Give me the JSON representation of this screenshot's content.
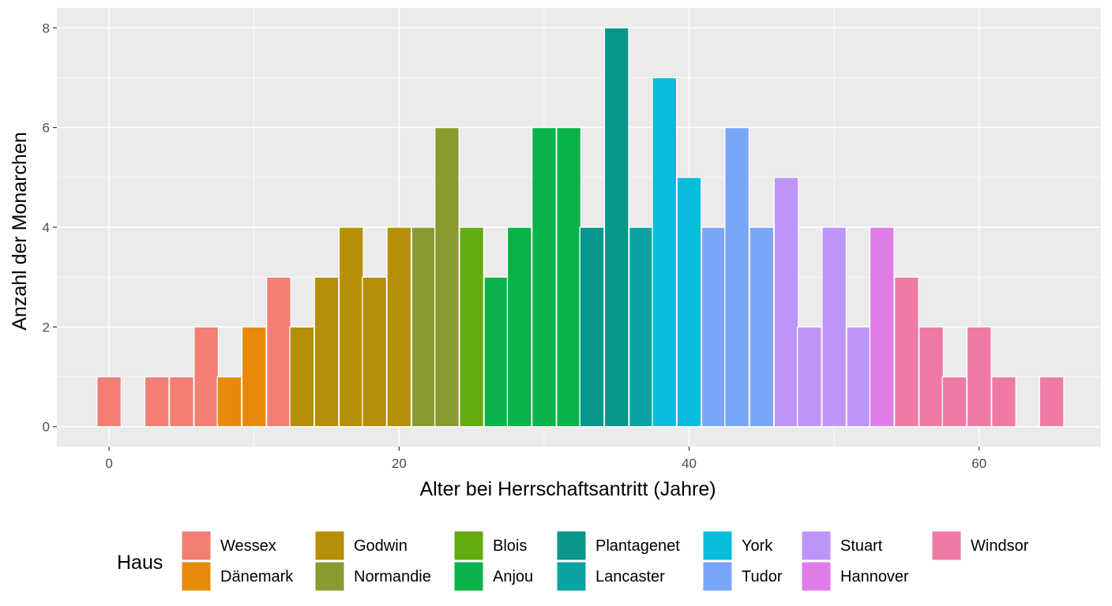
{
  "chart_data": {
    "type": "bar",
    "title": "",
    "xlabel": "Alter bei Herrschaftsantritt (Jahre)",
    "ylabel": "Anzahl der Monarchen",
    "xlim": [
      -3.6,
      68.4
    ],
    "ylim": [
      -0.4,
      8.4
    ],
    "x_ticks": [
      0,
      20,
      40,
      60
    ],
    "y_ticks": [
      0,
      2,
      4,
      6,
      8
    ],
    "bin_width": 1.667,
    "grid": true,
    "legend": {
      "title": "Haus",
      "position": "bottom",
      "entries": [
        {
          "name": "Wessex",
          "color": "#F27F71"
        },
        {
          "name": "Dänemark",
          "color": "#E7890A"
        },
        {
          "name": "Godwin",
          "color": "#B58F05"
        },
        {
          "name": "Normandie",
          "color": "#8B9A30"
        },
        {
          "name": "Blois",
          "color": "#63AB11"
        },
        {
          "name": "Anjou",
          "color": "#09B34A"
        },
        {
          "name": "Plantagenet",
          "color": "#07958E"
        },
        {
          "name": "Lancaster",
          "color": "#0BA3A1"
        },
        {
          "name": "York",
          "color": "#06BEDB"
        },
        {
          "name": "Tudor",
          "color": "#7AA6F8"
        },
        {
          "name": "Stuart",
          "color": "#BD95F8"
        },
        {
          "name": "Hannover",
          "color": "#DF7DE8"
        },
        {
          "name": "Windsor",
          "color": "#EE7AA5"
        }
      ]
    },
    "bars": [
      {
        "x": 0.0,
        "value": 1,
        "house": "Wessex"
      },
      {
        "x": 3.3,
        "value": 1,
        "house": "Wessex"
      },
      {
        "x": 5.0,
        "value": 1,
        "house": "Wessex"
      },
      {
        "x": 6.7,
        "value": 2,
        "house": "Wessex"
      },
      {
        "x": 8.3,
        "value": 1,
        "house": "Dänemark"
      },
      {
        "x": 10.0,
        "value": 2,
        "house": "Dänemark"
      },
      {
        "x": 11.7,
        "value": 3,
        "house": "Wessex"
      },
      {
        "x": 13.3,
        "value": 2,
        "house": "Godwin"
      },
      {
        "x": 15.0,
        "value": 3,
        "house": "Godwin"
      },
      {
        "x": 16.7,
        "value": 4,
        "house": "Godwin"
      },
      {
        "x": 18.3,
        "value": 3,
        "house": "Godwin"
      },
      {
        "x": 20.0,
        "value": 4,
        "house": "Godwin"
      },
      {
        "x": 21.7,
        "value": 4,
        "house": "Normandie"
      },
      {
        "x": 23.3,
        "value": 6,
        "house": "Normandie"
      },
      {
        "x": 25.0,
        "value": 4,
        "house": "Blois"
      },
      {
        "x": 26.7,
        "value": 3,
        "house": "Anjou"
      },
      {
        "x": 28.3,
        "value": 4,
        "house": "Anjou"
      },
      {
        "x": 30.0,
        "value": 6,
        "house": "Anjou"
      },
      {
        "x": 31.7,
        "value": 6,
        "house": "Anjou"
      },
      {
        "x": 33.3,
        "value": 4,
        "house": "Plantagenet"
      },
      {
        "x": 35.0,
        "value": 8,
        "house": "Plantagenet"
      },
      {
        "x": 36.7,
        "value": 4,
        "house": "Lancaster"
      },
      {
        "x": 38.3,
        "value": 7,
        "house": "York"
      },
      {
        "x": 40.0,
        "value": 5,
        "house": "York"
      },
      {
        "x": 41.7,
        "value": 4,
        "house": "Tudor"
      },
      {
        "x": 43.3,
        "value": 6,
        "house": "Tudor"
      },
      {
        "x": 45.0,
        "value": 4,
        "house": "Tudor"
      },
      {
        "x": 46.7,
        "value": 5,
        "house": "Stuart"
      },
      {
        "x": 48.3,
        "value": 2,
        "house": "Stuart"
      },
      {
        "x": 50.0,
        "value": 4,
        "house": "Stuart"
      },
      {
        "x": 51.7,
        "value": 2,
        "house": "Stuart"
      },
      {
        "x": 53.3,
        "value": 4,
        "house": "Hannover"
      },
      {
        "x": 55.0,
        "value": 3,
        "house": "Windsor"
      },
      {
        "x": 56.7,
        "value": 2,
        "house": "Windsor"
      },
      {
        "x": 58.3,
        "value": 1,
        "house": "Windsor"
      },
      {
        "x": 60.0,
        "value": 2,
        "house": "Windsor"
      },
      {
        "x": 61.7,
        "value": 1,
        "house": "Windsor"
      },
      {
        "x": 65.0,
        "value": 1,
        "house": "Windsor"
      }
    ]
  }
}
